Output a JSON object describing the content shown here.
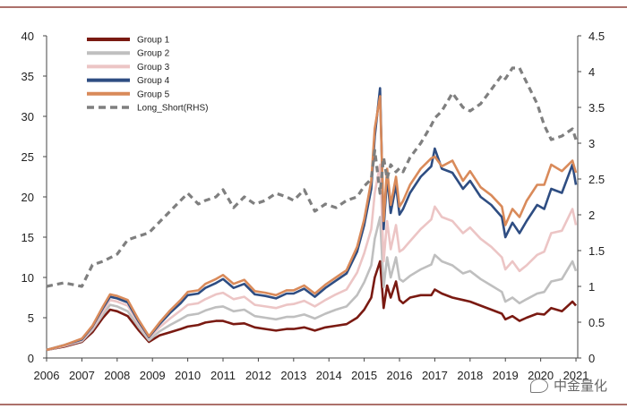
{
  "chart_data": {
    "type": "line",
    "title": "",
    "xlabel": "",
    "ylabel": "",
    "ylim": [
      0,
      40
    ],
    "y2lim": [
      0,
      4.5
    ],
    "yticks": [
      0,
      5,
      10,
      15,
      20,
      25,
      30,
      35,
      40
    ],
    "y2ticks": [
      "0",
      "0.5",
      "1",
      "1.5",
      "2",
      "2.5",
      "3",
      "3.5",
      "4",
      "4.5"
    ],
    "xlim": [
      2006,
      2021.05
    ],
    "xticks": [
      "2006",
      "2007",
      "2008",
      "2009",
      "2010",
      "2011",
      "2012",
      "2013",
      "2014",
      "2015",
      "2016",
      "2017",
      "2018",
      "2019",
      "2020",
      "2021"
    ],
    "x": [
      2006.0,
      2006.5,
      2007.0,
      2007.3,
      2007.6,
      2007.8,
      2008.0,
      2008.3,
      2008.6,
      2008.9,
      2009.2,
      2009.5,
      2009.8,
      2010.0,
      2010.3,
      2010.5,
      2010.8,
      2011.0,
      2011.3,
      2011.6,
      2011.9,
      2012.2,
      2012.5,
      2012.8,
      2013.0,
      2013.3,
      2013.6,
      2013.9,
      2014.2,
      2014.5,
      2014.8,
      2015.0,
      2015.2,
      2015.3,
      2015.45,
      2015.55,
      2015.65,
      2015.75,
      2015.9,
      2016.0,
      2016.1,
      2016.3,
      2016.6,
      2016.9,
      2017.0,
      2017.2,
      2017.5,
      2017.8,
      2018.0,
      2018.3,
      2018.6,
      2018.9,
      2019.0,
      2019.2,
      2019.4,
      2019.6,
      2019.9,
      2020.1,
      2020.3,
      2020.6,
      2020.9,
      2021.0
    ],
    "series": [
      {
        "name": "Group 1",
        "axis": "left",
        "color": "#7a1a12",
        "values": [
          1.0,
          1.4,
          2.0,
          3.2,
          5.0,
          6.0,
          5.8,
          5.2,
          3.5,
          2.0,
          2.8,
          3.2,
          3.6,
          3.9,
          4.1,
          4.4,
          4.6,
          4.6,
          4.2,
          4.3,
          3.8,
          3.6,
          3.4,
          3.6,
          3.6,
          3.8,
          3.4,
          3.8,
          4.0,
          4.2,
          5.0,
          6.0,
          7.5,
          10.0,
          12.0,
          6.2,
          9.0,
          7.5,
          9.5,
          7.2,
          6.8,
          7.5,
          7.8,
          7.8,
          8.5,
          8.0,
          7.5,
          7.2,
          7.0,
          6.5,
          6.0,
          5.5,
          4.8,
          5.2,
          4.6,
          5.0,
          5.5,
          5.4,
          6.2,
          5.8,
          7.0,
          6.5
        ]
      },
      {
        "name": "Group 2",
        "axis": "left",
        "color": "#bfbfbf",
        "values": [
          1.0,
          1.5,
          2.1,
          3.5,
          5.4,
          6.6,
          6.4,
          5.8,
          3.9,
          2.2,
          3.3,
          4.1,
          4.8,
          5.3,
          5.5,
          5.9,
          6.3,
          6.4,
          5.8,
          6.0,
          5.2,
          5.0,
          4.8,
          5.1,
          5.1,
          5.4,
          4.9,
          5.5,
          6.0,
          6.4,
          7.8,
          9.4,
          11.5,
          14.8,
          17.5,
          8.8,
          12.5,
          10.0,
          12.5,
          9.8,
          9.5,
          10.2,
          11.0,
          11.6,
          12.8,
          12.0,
          11.5,
          10.5,
          10.8,
          9.8,
          9.0,
          8.2,
          7.0,
          7.5,
          6.8,
          7.3,
          8.0,
          8.2,
          9.5,
          9.8,
          12.0,
          10.8
        ]
      },
      {
        "name": "Group 3",
        "axis": "left",
        "color": "#ecc5c5",
        "values": [
          1.0,
          1.5,
          2.2,
          3.7,
          5.8,
          7.2,
          7.0,
          6.5,
          4.3,
          2.5,
          3.8,
          4.9,
          5.9,
          6.6,
          6.8,
          7.3,
          7.9,
          8.1,
          7.3,
          7.6,
          6.6,
          6.4,
          6.2,
          6.6,
          6.7,
          7.1,
          6.4,
          7.2,
          7.9,
          8.5,
          10.6,
          13.0,
          16.0,
          20.5,
          24.0,
          12.0,
          17.0,
          13.5,
          16.5,
          13.2,
          13.5,
          14.5,
          16.0,
          17.2,
          18.8,
          17.5,
          17.0,
          15.5,
          16.2,
          14.8,
          13.8,
          12.5,
          11.0,
          12.0,
          10.8,
          11.5,
          12.8,
          13.2,
          15.5,
          15.8,
          18.5,
          16.5
        ]
      },
      {
        "name": "Group 4",
        "axis": "left",
        "color": "#2e4d82",
        "values": [
          1.0,
          1.6,
          2.3,
          3.9,
          6.2,
          7.6,
          7.4,
          6.9,
          4.6,
          2.6,
          4.2,
          5.6,
          6.8,
          7.8,
          8.0,
          8.7,
          9.3,
          9.8,
          8.7,
          9.2,
          7.9,
          7.7,
          7.4,
          8.0,
          8.0,
          8.6,
          7.6,
          8.7,
          9.6,
          10.5,
          13.2,
          16.5,
          21.0,
          27.5,
          33.5,
          16.0,
          22.5,
          18.0,
          21.5,
          17.8,
          18.5,
          20.5,
          22.5,
          23.8,
          26.0,
          23.5,
          23.0,
          21.0,
          22.0,
          20.0,
          19.0,
          17.5,
          15.0,
          16.8,
          15.5,
          17.0,
          19.0,
          18.5,
          21.0,
          20.5,
          24.0,
          21.5
        ]
      },
      {
        "name": "Group 5",
        "axis": "left",
        "color": "#d98a5a",
        "values": [
          1.0,
          1.6,
          2.4,
          4.0,
          6.4,
          7.9,
          7.7,
          7.2,
          4.8,
          2.7,
          4.4,
          5.9,
          7.2,
          8.2,
          8.4,
          9.2,
          9.8,
          10.3,
          9.2,
          9.7,
          8.3,
          8.1,
          7.8,
          8.4,
          8.4,
          9.0,
          8.0,
          9.1,
          10.0,
          10.9,
          13.8,
          17.2,
          22.0,
          28.5,
          32.5,
          17.0,
          23.5,
          19.0,
          22.5,
          18.8,
          19.5,
          21.5,
          23.5,
          24.8,
          25.0,
          23.8,
          24.5,
          22.0,
          23.2,
          21.2,
          20.2,
          18.8,
          16.5,
          18.5,
          17.5,
          19.5,
          21.5,
          21.5,
          24.0,
          23.2,
          24.5,
          23.0
        ]
      },
      {
        "name": "Long_Short(RHS)",
        "axis": "right",
        "color": "#7f7f7f",
        "dashed": true,
        "values": [
          1.0,
          1.05,
          1.0,
          1.3,
          1.35,
          1.4,
          1.45,
          1.65,
          1.7,
          1.75,
          1.9,
          2.05,
          2.2,
          2.3,
          2.15,
          2.2,
          2.25,
          2.35,
          2.1,
          2.25,
          2.15,
          2.2,
          2.3,
          2.25,
          2.2,
          2.35,
          2.05,
          2.15,
          2.1,
          2.2,
          2.25,
          2.4,
          2.5,
          2.9,
          2.3,
          2.8,
          2.5,
          2.7,
          2.6,
          2.65,
          2.6,
          2.8,
          3.0,
          3.25,
          3.35,
          3.45,
          3.7,
          3.5,
          3.45,
          3.55,
          3.75,
          3.95,
          3.9,
          4.05,
          4.05,
          3.85,
          3.55,
          3.25,
          3.05,
          3.1,
          3.2,
          3.05
        ]
      }
    ]
  }
}
